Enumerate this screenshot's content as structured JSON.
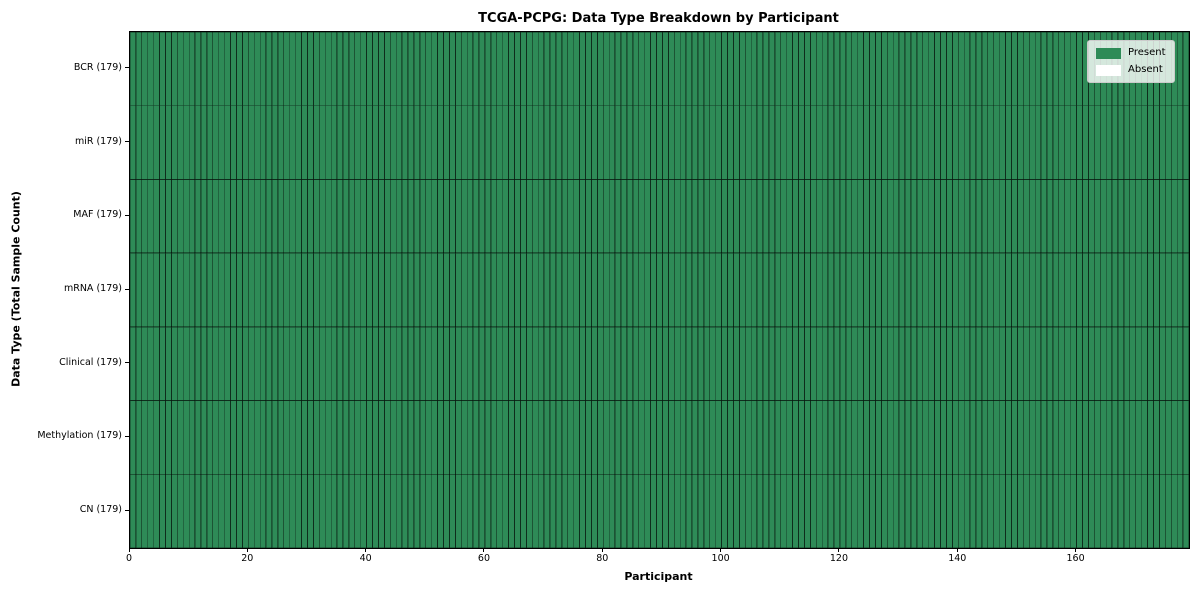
{
  "chart_data": {
    "type": "heatmap",
    "title": "TCGA-PCPG: Data Type Breakdown by Participant",
    "xlabel": "Participant",
    "ylabel": "Data Type (Total Sample Count)",
    "xlim": [
      0,
      179
    ],
    "x_ticks": [
      0,
      20,
      40,
      60,
      80,
      100,
      120,
      140,
      160
    ],
    "n_participants": 179,
    "all_cells_present": true,
    "rows": [
      {
        "label": "BCR (179)",
        "data_type": "BCR",
        "total_samples": 179,
        "present_count": 179,
        "absent_count": 0
      },
      {
        "label": "miR (179)",
        "data_type": "miR",
        "total_samples": 179,
        "present_count": 179,
        "absent_count": 0
      },
      {
        "label": "MAF (179)",
        "data_type": "MAF",
        "total_samples": 179,
        "present_count": 179,
        "absent_count": 0
      },
      {
        "label": "mRNA (179)",
        "data_type": "mRNA",
        "total_samples": 179,
        "present_count": 179,
        "absent_count": 0
      },
      {
        "label": "Clinical (179)",
        "data_type": "Clinical",
        "total_samples": 179,
        "present_count": 179,
        "absent_count": 0
      },
      {
        "label": "Methylation (179)",
        "data_type": "Methylation",
        "total_samples": 179,
        "present_count": 179,
        "absent_count": 0
      },
      {
        "label": "CN (179)",
        "data_type": "CN",
        "total_samples": 179,
        "present_count": 179,
        "absent_count": 0
      }
    ],
    "legend": [
      {
        "label": "Present",
        "color": "#2e8b57"
      },
      {
        "label": "Absent",
        "color": "#ffffff"
      }
    ],
    "legend_position": "upper right",
    "colors": {
      "present": "#2e8b57",
      "absent": "#ffffff",
      "cell_edge": "rgba(0,0,0,0.55)",
      "spine": "#000000"
    }
  }
}
